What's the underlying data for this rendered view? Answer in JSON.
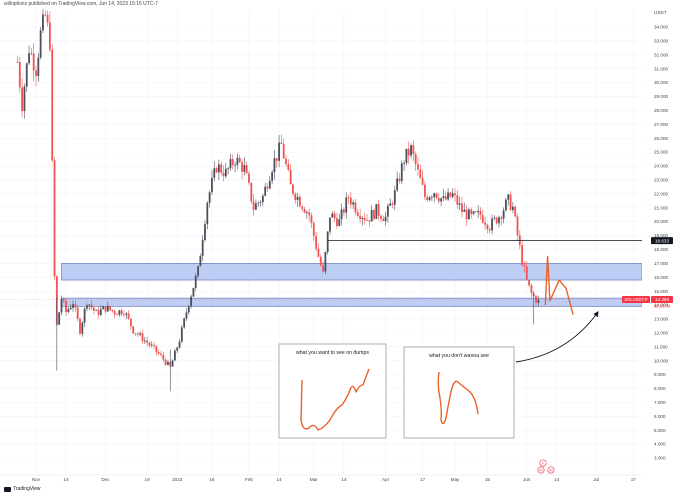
{
  "header": {
    "publisher": "willoptions published on TradingView.com, Jun 14, 2023 15:15 UTC-7"
  },
  "footer": {
    "brand": "TradingView"
  },
  "colors": {
    "up": "#26a69a",
    "down": "#ef5350",
    "candle": "#4a4f5c",
    "zone_fill": "#b3c4f2",
    "zone_border": "#5b6fb0",
    "price_line": "#131722",
    "orange": "#e8622a",
    "label_red": "#f23645"
  },
  "chart_data": {
    "type": "line",
    "title": "",
    "symbol": "SOLUSDT.P",
    "currency": "USDT",
    "ylim": [
      2000,
      35000
    ],
    "y_ticks": [
      3000,
      4000,
      5000,
      6000,
      7000,
      8000,
      9000,
      10000,
      11000,
      12000,
      13000,
      14000,
      15000,
      16000,
      17000,
      18000,
      19000,
      20000,
      21000,
      22000,
      23000,
      24000,
      25000,
      26000,
      27000,
      28000,
      29000,
      30000,
      31000,
      32000,
      33000,
      34000
    ],
    "y_tick_labels": [
      "3.000",
      "4.000",
      "5.000",
      "6.000",
      "7.000",
      "8.000",
      "9.000",
      "10.000",
      "11.000",
      "12.000",
      "13.000",
      "14.000",
      "15.000",
      "16.000",
      "17.000",
      "18.000",
      "19.000",
      "20.000",
      "21.000",
      "22.000",
      "23.000",
      "24.000",
      "25.000",
      "26.000",
      "27.000",
      "28.000",
      "29.000",
      "30.000",
      "31.000",
      "32.000",
      "33.000",
      "34.000"
    ],
    "x_ticks": [
      {
        "label": "Nov",
        "day": 0
      },
      {
        "label": "14",
        "day": 13
      },
      {
        "label": "Dec",
        "day": 30
      },
      {
        "label": "19",
        "day": 48
      },
      {
        "label": "2023",
        "day": 61
      },
      {
        "label": "16",
        "day": 76
      },
      {
        "label": "Feb",
        "day": 92
      },
      {
        "label": "14",
        "day": 105
      },
      {
        "label": "Mar",
        "day": 120
      },
      {
        "label": "14",
        "day": 133
      },
      {
        "label": "Apr",
        "day": 151
      },
      {
        "label": "17",
        "day": 167
      },
      {
        "label": "May",
        "day": 181
      },
      {
        "label": "15",
        "day": 195
      },
      {
        "label": "Jun",
        "day": 212
      },
      {
        "label": "14",
        "day": 225
      },
      {
        "label": "Jul",
        "day": 242
      },
      {
        "label": "17",
        "day": 258
      }
    ],
    "price_path": [
      {
        "day": -8,
        "price": 31500
      },
      {
        "day": -6,
        "price": 28500
      },
      {
        "day": -3,
        "price": 32500
      },
      {
        "day": 0,
        "price": 31000
      },
      {
        "day": 2,
        "price": 33500
      },
      {
        "day": 4,
        "price": 34800
      },
      {
        "day": 6,
        "price": 33000
      },
      {
        "day": 7,
        "price": 24000
      },
      {
        "day": 8,
        "price": 16000
      },
      {
        "day": 9,
        "price": 12500
      },
      {
        "day": 11,
        "price": 14500
      },
      {
        "day": 13,
        "price": 13500
      },
      {
        "day": 16,
        "price": 14200
      },
      {
        "day": 19,
        "price": 12200
      },
      {
        "day": 22,
        "price": 14300
      },
      {
        "day": 26,
        "price": 13400
      },
      {
        "day": 30,
        "price": 13800
      },
      {
        "day": 34,
        "price": 13500
      },
      {
        "day": 38,
        "price": 13600
      },
      {
        "day": 42,
        "price": 12200
      },
      {
        "day": 46,
        "price": 11600
      },
      {
        "day": 50,
        "price": 11000
      },
      {
        "day": 54,
        "price": 10300
      },
      {
        "day": 58,
        "price": 9500
      },
      {
        "day": 62,
        "price": 11500
      },
      {
        "day": 66,
        "price": 14200
      },
      {
        "day": 70,
        "price": 16500
      },
      {
        "day": 74,
        "price": 21500
      },
      {
        "day": 78,
        "price": 24000
      },
      {
        "day": 82,
        "price": 23500
      },
      {
        "day": 86,
        "price": 24500
      },
      {
        "day": 90,
        "price": 23800
      },
      {
        "day": 94,
        "price": 21000
      },
      {
        "day": 98,
        "price": 21800
      },
      {
        "day": 102,
        "price": 24000
      },
      {
        "day": 106,
        "price": 25500
      },
      {
        "day": 110,
        "price": 22500
      },
      {
        "day": 114,
        "price": 21500
      },
      {
        "day": 118,
        "price": 20500
      },
      {
        "day": 122,
        "price": 17500
      },
      {
        "day": 124,
        "price": 16200
      },
      {
        "day": 127,
        "price": 20500
      },
      {
        "day": 131,
        "price": 20000
      },
      {
        "day": 135,
        "price": 21800
      },
      {
        "day": 139,
        "price": 20800
      },
      {
        "day": 143,
        "price": 20200
      },
      {
        "day": 147,
        "price": 20800
      },
      {
        "day": 151,
        "price": 20300
      },
      {
        "day": 155,
        "price": 22000
      },
      {
        "day": 159,
        "price": 24500
      },
      {
        "day": 162,
        "price": 25200
      },
      {
        "day": 165,
        "price": 23500
      },
      {
        "day": 168,
        "price": 21800
      },
      {
        "day": 172,
        "price": 22200
      },
      {
        "day": 176,
        "price": 21500
      },
      {
        "day": 180,
        "price": 21900
      },
      {
        "day": 184,
        "price": 20800
      },
      {
        "day": 188,
        "price": 20300
      },
      {
        "day": 192,
        "price": 20500
      },
      {
        "day": 196,
        "price": 19700
      },
      {
        "day": 200,
        "price": 20400
      },
      {
        "day": 204,
        "price": 21500
      },
      {
        "day": 206,
        "price": 21000
      },
      {
        "day": 208,
        "price": 19000
      },
      {
        "day": 210,
        "price": 17200
      },
      {
        "day": 212,
        "price": 15700
      },
      {
        "day": 214,
        "price": 14800
      },
      {
        "day": 216,
        "price": 14400
      },
      {
        "day": 217,
        "price": 14399
      }
    ],
    "zones": [
      {
        "low": 15800,
        "high": 17000,
        "day_start": 11
      },
      {
        "low": 13900,
        "high": 14500,
        "day_start": 11
      }
    ],
    "horizontal_line": {
      "price": 18633,
      "label": "18.633",
      "day_start": 126
    },
    "current_price": {
      "price": 14399,
      "label": "14.399",
      "countdown": "08:24:09",
      "symbol_label": "SOLUSDT.P"
    },
    "projection": [
      {
        "day": 220,
        "price": 14000
      },
      {
        "day": 221,
        "price": 17500
      },
      {
        "day": 222,
        "price": 14300
      },
      {
        "day": 226,
        "price": 15800
      },
      {
        "day": 229,
        "price": 15200
      },
      {
        "day": 232,
        "price": 13300
      }
    ],
    "annotations": [
      {
        "text": "what you want to see on dumps"
      },
      {
        "text": "what you don't wanna see"
      }
    ],
    "event_markers": [
      "F",
      "IN",
      "IN"
    ]
  }
}
